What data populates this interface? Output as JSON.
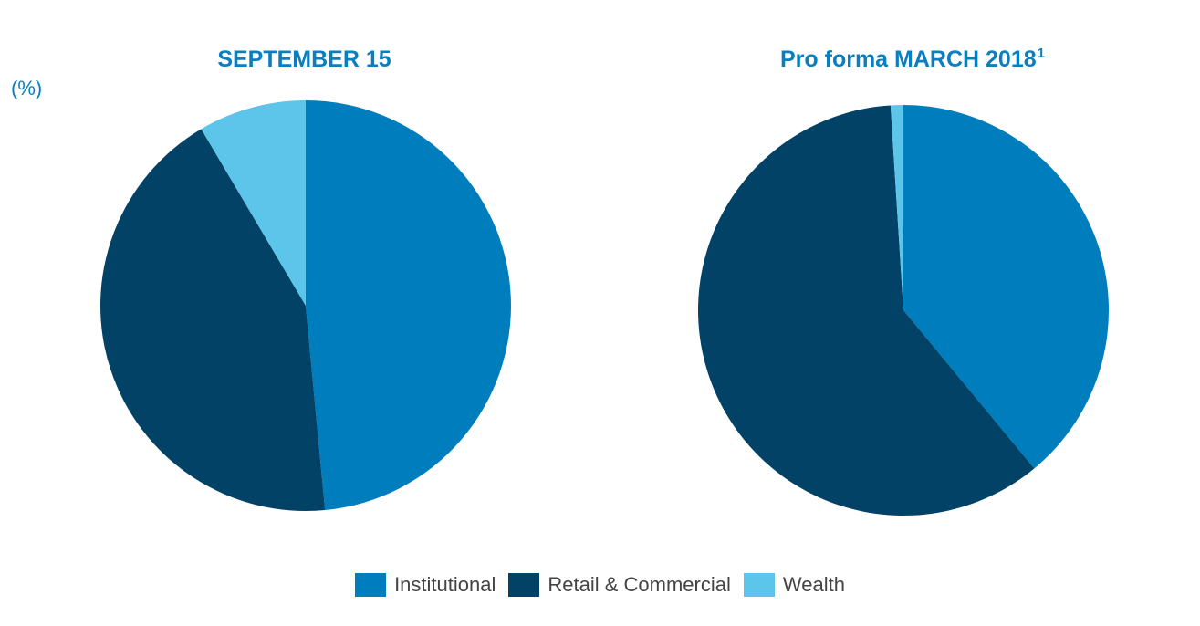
{
  "unit_label": "(%)",
  "colors": {
    "institutional": "#007dbd",
    "retail_commercial": "#014266",
    "wealth": "#5cc5e9"
  },
  "legend": [
    {
      "label": "Institutional",
      "color": "#007dbd"
    },
    {
      "label": "Retail & Commercial",
      "color": "#014266"
    },
    {
      "label": "Wealth",
      "color": "#5cc5e9"
    }
  ],
  "chart_data": [
    {
      "type": "pie",
      "title": "SEPTEMBER 15",
      "title_superscript": "",
      "start_angle_deg": 0,
      "direction": "clockwise",
      "slices": [
        {
          "label": "Institutional",
          "value": 48.5,
          "color": "#007dbd"
        },
        {
          "label": "Retail & Commercial",
          "value": 43,
          "color": "#014266"
        },
        {
          "label": "Wealth",
          "value": 8.5,
          "color": "#5cc5e9"
        }
      ]
    },
    {
      "type": "pie",
      "title": "Pro forma MARCH 2018",
      "title_superscript": "1",
      "start_angle_deg": 0,
      "direction": "clockwise",
      "slices": [
        {
          "label": "Institutional",
          "value": 39,
          "color": "#007dbd"
        },
        {
          "label": "Retail & Commercial",
          "value": 60,
          "color": "#014266"
        },
        {
          "label": "Wealth",
          "value": 1,
          "color": "#5cc5e9"
        }
      ]
    }
  ]
}
